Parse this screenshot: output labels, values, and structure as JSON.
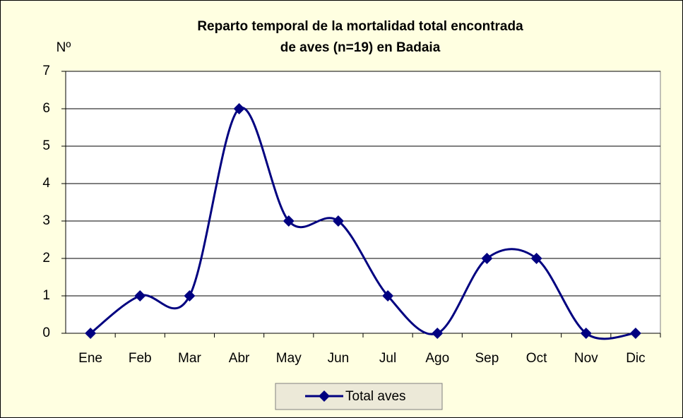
{
  "chart_data": {
    "type": "line",
    "title": [
      "Reparto temporal de la mortalidad total encontrada",
      "de aves (n=19) en Badaia"
    ],
    "y_label": "Nº",
    "categories": [
      "Ene",
      "Feb",
      "Mar",
      "Abr",
      "May",
      "Jun",
      "Jul",
      "Ago",
      "Sep",
      "Oct",
      "Nov",
      "Dic"
    ],
    "series": [
      {
        "name": "Total aves",
        "color": "#000080",
        "values": [
          0,
          1,
          1,
          6,
          3,
          3,
          1,
          0,
          2,
          2,
          0,
          0
        ]
      }
    ],
    "ylim": [
      0,
      7
    ],
    "yticks": [
      0,
      1,
      2,
      3,
      4,
      5,
      6,
      7
    ],
    "grid": true,
    "smooth": true,
    "legend": "bottom"
  }
}
